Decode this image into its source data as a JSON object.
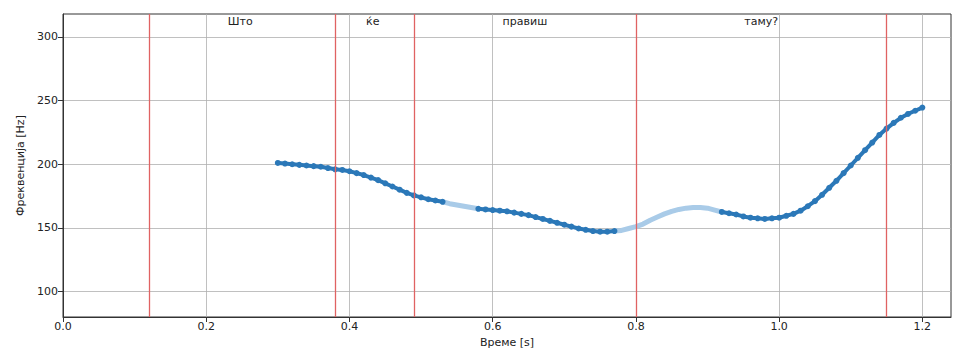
{
  "chart_data": {
    "type": "line",
    "x_label": "Време [s]",
    "y_label": "Фреквенција [Hz]",
    "xlim": [
      0,
      1.24
    ],
    "xticks": [
      {
        "value": 0,
        "label": "0.0"
      },
      0.2,
      0.4,
      0.6,
      0.8,
      {
        "value": 1,
        "label": "1.0"
      },
      1.2
    ],
    "ylim": [
      80,
      318
    ],
    "yticks": [
      100,
      150,
      200,
      250,
      300
    ],
    "grid": true,
    "words": [
      {
        "text": "Што",
        "start": 0.12,
        "end": 0.375
      },
      {
        "text": "ќе",
        "start": 0.375,
        "end": 0.49
      },
      {
        "text": "правиш",
        "start": 0.49,
        "end": 0.8
      },
      {
        "text": "таму?",
        "start": 0.8,
        "end": 1.15
      }
    ],
    "boundaries": [
      0.12,
      0.375,
      0.49,
      0.8,
      1.15
    ],
    "x": [
      0.3,
      0.31,
      0.32,
      0.33,
      0.34,
      0.35,
      0.36,
      0.37,
      0.38,
      0.39,
      0.4,
      0.41,
      0.42,
      0.43,
      0.44,
      0.45,
      0.46,
      0.47,
      0.48,
      0.49,
      0.5,
      0.51,
      0.52,
      0.53,
      0.54,
      0.55,
      0.56,
      0.57,
      0.58,
      0.59,
      0.6,
      0.61,
      0.62,
      0.63,
      0.64,
      0.65,
      0.66,
      0.67,
      0.68,
      0.69,
      0.7,
      0.71,
      0.72,
      0.73,
      0.74,
      0.75,
      0.76,
      0.77,
      0.78,
      0.79,
      0.8,
      0.81,
      0.82,
      0.83,
      0.84,
      0.85,
      0.86,
      0.87,
      0.88,
      0.89,
      0.9,
      0.91,
      0.92,
      0.93,
      0.94,
      0.95,
      0.96,
      0.97,
      0.98,
      0.99,
      1.0,
      1.01,
      1.02,
      1.03,
      1.04,
      1.05,
      1.06,
      1.07,
      1.08,
      1.09,
      1.1,
      1.11,
      1.12,
      1.13,
      1.14,
      1.15,
      1.16,
      1.17,
      1.18,
      1.19,
      1.2
    ],
    "series": [
      {
        "color": "#a9cbe8",
        "line_style": "solid",
        "values": [
          null,
          null,
          null,
          null,
          null,
          null,
          null,
          null,
          null,
          null,
          null,
          null,
          null,
          null,
          null,
          null,
          null,
          null,
          null,
          null,
          null,
          null,
          null,
          170.5,
          169,
          168,
          167,
          166,
          165,
          null,
          null,
          null,
          null,
          null,
          null,
          null,
          null,
          null,
          null,
          null,
          null,
          null,
          null,
          null,
          null,
          null,
          null,
          147.5,
          148,
          149.5,
          151,
          153,
          156,
          158.5,
          161,
          163,
          164.5,
          165.5,
          166,
          166,
          165.5,
          164,
          162.5,
          null,
          null,
          null,
          null,
          null,
          null,
          null,
          null,
          null,
          null,
          null,
          null,
          null,
          null,
          null,
          null,
          null,
          null,
          null,
          null,
          null,
          null,
          null,
          null,
          null,
          null,
          null,
          null
        ]
      },
      {
        "color": "#2b78b8",
        "line_style": "solid",
        "marker": "o",
        "values": [
          201,
          200.5,
          200,
          199.5,
          199,
          198.5,
          198,
          197,
          196,
          195.5,
          194.5,
          193,
          191.5,
          189.5,
          187.5,
          185,
          182.5,
          180,
          177.5,
          175.5,
          174,
          172.5,
          171.5,
          170.5,
          null,
          null,
          null,
          null,
          165,
          164.5,
          164,
          163.5,
          163,
          162,
          161,
          160,
          158.5,
          157,
          155.5,
          154,
          152.5,
          151,
          149.5,
          148.5,
          147.5,
          147,
          147,
          147.5,
          null,
          null,
          null,
          null,
          null,
          null,
          null,
          null,
          null,
          null,
          null,
          null,
          null,
          null,
          162.5,
          161.5,
          160.5,
          159,
          158,
          157.5,
          157,
          157.5,
          158,
          159.5,
          161,
          163.5,
          167,
          171,
          176,
          181.5,
          187,
          193,
          199,
          205,
          211,
          217,
          223,
          228,
          232.5,
          236.5,
          239.5,
          242,
          244.5
        ]
      }
    ]
  }
}
